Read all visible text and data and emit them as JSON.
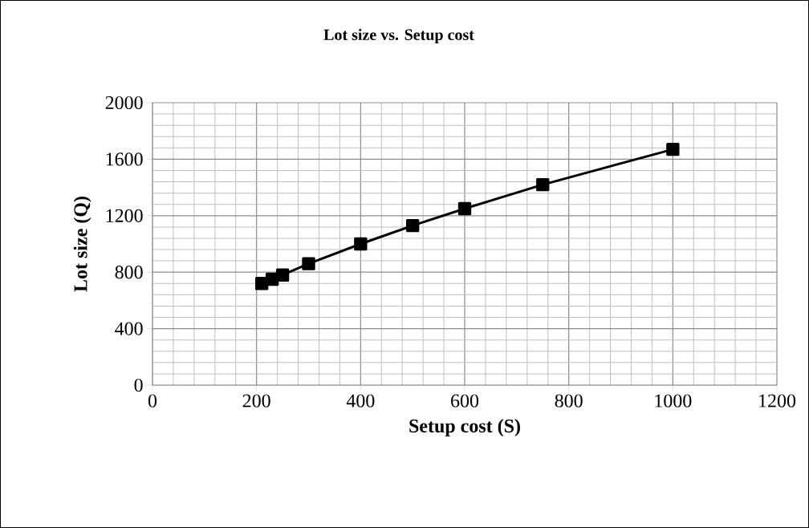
{
  "chart_data": {
    "type": "line",
    "title": "Lot size vs. Setup cost",
    "xlabel": "Setup cost (S)",
    "ylabel": "Lot size (Q)",
    "x": [
      210,
      230,
      250,
      300,
      400,
      500,
      600,
      750,
      1000
    ],
    "series": [
      {
        "color": "#000000",
        "values": [
          720,
          750,
          780,
          860,
          1000,
          1130,
          1250,
          1420,
          1670
        ]
      }
    ],
    "xlim": [
      0,
      1200
    ],
    "xticks": [
      0,
      200,
      400,
      600,
      800,
      1000,
      1200
    ],
    "ylim": [
      0,
      2000
    ],
    "yticks": [
      0,
      400,
      800,
      1200,
      1600,
      2000
    ],
    "grid": true,
    "marker": "square",
    "line_style": "solid"
  }
}
